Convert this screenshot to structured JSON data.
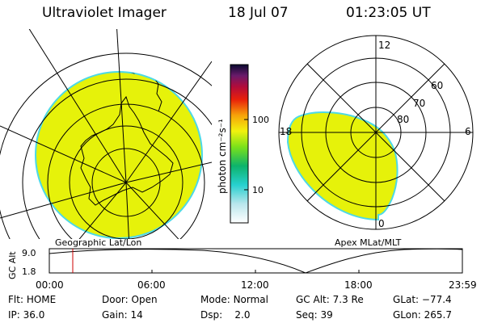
{
  "header": {
    "title": "Ultraviolet Imager",
    "date": "18 Jul 07",
    "time": "01:23:05 UT"
  },
  "geo_map": {
    "caption": "Geographic Lat/Lon"
  },
  "polar_map": {
    "caption": "Apex MLat/MLT",
    "mlt_labels": [
      "12",
      "18",
      "6",
      "0"
    ],
    "lat_labels": [
      "60",
      "70",
      "80"
    ]
  },
  "colorbar": {
    "unit_label": "photon cm⁻²s⁻¹",
    "ticks": [
      "100",
      "10"
    ]
  },
  "altitude_plot": {
    "ylabel": "GC Alt",
    "ymax_label": "9.0",
    "ymin_label": "1.8",
    "x_ticks": [
      "00:00",
      "06:00",
      "12:00",
      "18:00",
      "23:59"
    ]
  },
  "status": {
    "flt": {
      "label": "Flt:",
      "value": "HOME"
    },
    "ip": {
      "label": "IP:",
      "value": "36.0"
    },
    "door": {
      "label": "Door:",
      "value": "Open"
    },
    "gain": {
      "label": "Gain:",
      "value": "14"
    },
    "mode": {
      "label": "Mode:",
      "value": "Normal"
    },
    "dsp": {
      "label": "Dsp:",
      "value": "2.0"
    },
    "gcalt": {
      "label": "GC Alt:",
      "value": "7.3 Re"
    },
    "seq": {
      "label": "Seq:",
      "value": "39"
    },
    "glat": {
      "label": "GLat:",
      "value": "−77.4"
    },
    "glon": {
      "label": "GLon:",
      "value": "265.7"
    }
  },
  "colors": {
    "aurora": "#e6f20a",
    "edge": "#4dd9e6",
    "marker": "#cc0000"
  }
}
